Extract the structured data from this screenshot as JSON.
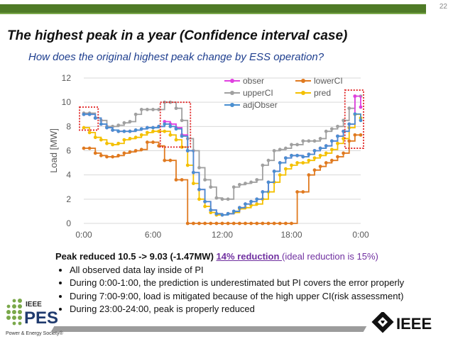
{
  "slide": {
    "number": "22",
    "title": "The highest peak in a year (Confidence interval case)",
    "subtitle": "How does the original highest peak change by ESS operation?"
  },
  "colors": {
    "header_green": "#4f7b27",
    "obser": "#e040e0",
    "lowerCI": "#e07a20",
    "upperCI": "#a0a0a0",
    "pred": "#f4c000",
    "adjObser": "#4a8fd0",
    "highlight": "#e02020"
  },
  "chart_data": {
    "type": "line",
    "ylabel": "Load [MW]",
    "xlabel": "",
    "ylim": [
      0,
      12
    ],
    "yticks": [
      "0",
      "2",
      "4",
      "6",
      "8",
      "10",
      "12"
    ],
    "xticks": [
      "0:00",
      "6:00",
      "12:00",
      "18:00",
      "0:00"
    ],
    "x_range_hours": [
      0,
      24
    ],
    "legend_position": "top-right",
    "highlight_windows_hours": [
      [
        0,
        1
      ],
      [
        7,
        9
      ],
      [
        23,
        24
      ]
    ],
    "x_hours": [
      0,
      0.5,
      1,
      1.5,
      2,
      2.5,
      3,
      3.5,
      4,
      4.5,
      5,
      5.5,
      6,
      6.5,
      7,
      7.5,
      8,
      8.5,
      9,
      9.5,
      10,
      10.5,
      11,
      11.5,
      12,
      12.5,
      13,
      13.5,
      14,
      14.5,
      15,
      15.5,
      16,
      16.5,
      17,
      17.5,
      18,
      18.5,
      19,
      19.5,
      20,
      20.5,
      21,
      21.5,
      22,
      22.5,
      23,
      23.5,
      24
    ],
    "series": [
      {
        "name": "obser",
        "values": [
          9.0,
          9.0,
          8.7,
          8.2,
          7.9,
          7.7,
          7.6,
          7.6,
          7.6,
          7.7,
          7.8,
          7.9,
          7.9,
          8.0,
          8.4,
          8.2,
          7.9,
          7.3,
          6.0,
          4.2,
          2.8,
          1.8,
          1.1,
          0.8,
          0.7,
          0.8,
          1.0,
          1.3,
          1.6,
          1.8,
          2.0,
          2.6,
          3.4,
          4.3,
          5.0,
          5.4,
          5.6,
          5.6,
          5.5,
          5.7,
          6.0,
          6.2,
          6.4,
          6.8,
          7.2,
          7.6,
          8.2,
          10.5,
          9.6
        ]
      },
      {
        "name": "lowerCI",
        "values": [
          6.2,
          6.2,
          5.8,
          5.6,
          5.5,
          5.5,
          5.6,
          5.8,
          5.9,
          6.0,
          6.1,
          6.7,
          6.7,
          6.4,
          5.2,
          5.2,
          3.6,
          3.6,
          0.0,
          0.0,
          0.0,
          0.0,
          0.0,
          0.0,
          0.0,
          0.0,
          0.0,
          0.0,
          0.0,
          0.0,
          0.0,
          0.0,
          0.0,
          0.0,
          0.0,
          0.0,
          0.0,
          2.6,
          2.6,
          4.0,
          4.4,
          4.7,
          5.0,
          5.2,
          5.5,
          5.8,
          6.8,
          7.3,
          7.3
        ]
      },
      {
        "name": "upperCI",
        "values": [
          9.1,
          9.1,
          8.7,
          8.5,
          8.0,
          8.0,
          8.1,
          8.3,
          8.4,
          9.0,
          9.4,
          9.4,
          9.4,
          9.4,
          10.0,
          10.0,
          9.5,
          8.5,
          7.0,
          6.0,
          4.6,
          3.6,
          3.0,
          2.1,
          2.0,
          2.0,
          3.0,
          3.2,
          3.3,
          3.4,
          3.6,
          4.8,
          5.2,
          6.0,
          6.1,
          6.2,
          6.5,
          6.5,
          6.8,
          6.8,
          6.8,
          7.0,
          7.6,
          7.8,
          8.0,
          8.5,
          9.5,
          10.5,
          10.5
        ]
      },
      {
        "name": "pred",
        "values": [
          7.9,
          7.5,
          7.1,
          6.9,
          6.6,
          6.5,
          6.6,
          6.9,
          7.0,
          7.1,
          7.3,
          7.5,
          7.6,
          7.6,
          7.6,
          7.3,
          6.9,
          6.3,
          4.8,
          3.3,
          2.0,
          1.4,
          0.9,
          0.7,
          0.7,
          0.8,
          0.9,
          1.2,
          1.3,
          1.5,
          1.6,
          2.0,
          2.6,
          3.4,
          4.0,
          4.5,
          4.8,
          5.0,
          5.0,
          5.2,
          5.4,
          5.6,
          5.8,
          6.1,
          6.6,
          7.0,
          7.9,
          9.0,
          8.7
        ]
      },
      {
        "name": "adjObser",
        "values": [
          9.0,
          9.0,
          8.7,
          8.2,
          7.9,
          7.7,
          7.6,
          7.6,
          7.6,
          7.7,
          7.8,
          7.9,
          7.9,
          8.0,
          8.2,
          8.0,
          7.8,
          7.2,
          6.0,
          4.2,
          2.8,
          1.8,
          1.1,
          0.8,
          0.7,
          0.8,
          1.0,
          1.3,
          1.6,
          1.8,
          2.0,
          2.6,
          3.4,
          4.3,
          5.0,
          5.4,
          5.6,
          5.6,
          5.5,
          5.7,
          6.0,
          6.2,
          6.4,
          6.8,
          7.2,
          7.6,
          8.2,
          9.03,
          8.5
        ]
      }
    ]
  },
  "text": {
    "lead_bold": "Peak reduced 10.5 -> 9.03 (-1.47MW) ",
    "lead_underline": "14% reduction ",
    "lead_plain": "(ideal reduction is 15%)",
    "bullets": [
      "All observed data lay inside of PI",
      "During 0:00-1:00, the prediction is underestimated but PI covers the error properly",
      "During 7:00-9:00, load is mitigated because of the high upper CI(risk assessment)",
      "During 23:00-24:00, peak is properly reduced"
    ]
  },
  "logos": {
    "pes_top": "IEEE",
    "pes_main": "PES",
    "pes_caption": "Power & Energy Society®",
    "ieee": "IEEE"
  }
}
